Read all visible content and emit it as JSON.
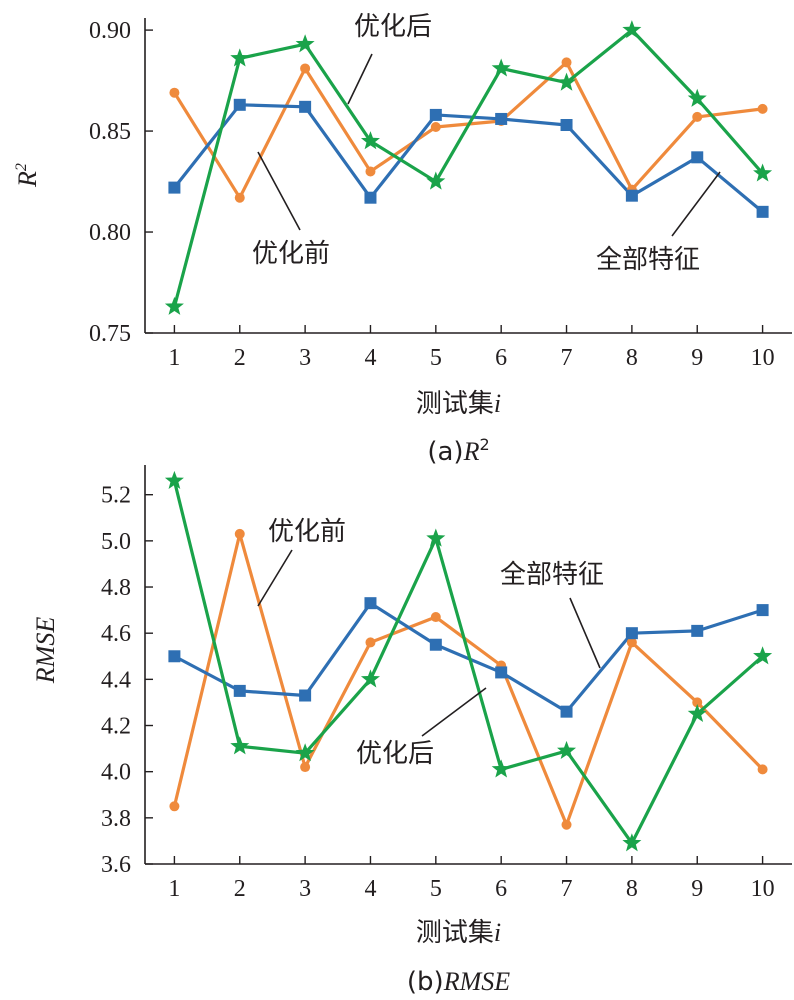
{
  "chart_data": [
    {
      "type": "line",
      "ylabel": "R",
      "ylabel_sup": "2",
      "xlabel": "测试集",
      "xlabel_var": "i",
      "caption_prefix": "(a)",
      "caption_main": "R",
      "caption_sup": "2",
      "x": [
        1,
        2,
        3,
        4,
        5,
        6,
        7,
        8,
        9,
        10
      ],
      "xlim": [
        0.55,
        10.45
      ],
      "ylim": [
        0.75,
        0.905
      ],
      "yticks": [
        "0.75",
        "0.80",
        "0.85",
        "0.90"
      ],
      "ytick_values": [
        0.75,
        0.8,
        0.85,
        0.9
      ],
      "xticks": [
        "1",
        "2",
        "3",
        "4",
        "5",
        "6",
        "7",
        "8",
        "9",
        "10"
      ],
      "series": [
        {
          "name": "优化前",
          "marker": "circle",
          "color": "#ef8a3c",
          "values": [
            0.869,
            0.817,
            0.881,
            0.83,
            0.852,
            0.855,
            0.884,
            0.821,
            0.857,
            0.861
          ]
        },
        {
          "name": "全部特征",
          "marker": "square",
          "color": "#2e6fb3",
          "values": [
            0.822,
            0.863,
            0.862,
            0.817,
            0.858,
            0.856,
            0.853,
            0.818,
            0.837,
            0.81
          ]
        },
        {
          "name": "优化后",
          "marker": "star",
          "color": "#1aa34a",
          "values": [
            0.763,
            0.886,
            0.893,
            0.845,
            0.825,
            0.881,
            0.874,
            0.9,
            0.866,
            0.829
          ]
        }
      ],
      "annotations": [
        "优化后",
        "优化前",
        "全部特征"
      ]
    },
    {
      "type": "line",
      "ylabel": "RMSE",
      "xlabel": "测试集",
      "xlabel_var": "i",
      "caption_prefix": "(b)",
      "caption_main": "RMSE",
      "x": [
        1,
        2,
        3,
        4,
        5,
        6,
        7,
        8,
        9,
        10
      ],
      "xlim": [
        0.55,
        10.45
      ],
      "ylim": [
        3.6,
        5.32
      ],
      "yticks": [
        "3.6",
        "3.8",
        "4.0",
        "4.2",
        "4.4",
        "4.6",
        "4.8",
        "5.0",
        "5.2"
      ],
      "ytick_values": [
        3.6,
        3.8,
        4.0,
        4.2,
        4.4,
        4.6,
        4.8,
        5.0,
        5.2
      ],
      "xticks": [
        "1",
        "2",
        "3",
        "4",
        "5",
        "6",
        "7",
        "8",
        "9",
        "10"
      ],
      "series": [
        {
          "name": "优化前",
          "marker": "circle",
          "color": "#ef8a3c",
          "values": [
            3.85,
            5.03,
            4.02,
            4.56,
            4.67,
            4.46,
            3.77,
            4.56,
            4.3,
            4.01
          ]
        },
        {
          "name": "全部特征",
          "marker": "square",
          "color": "#2e6fb3",
          "values": [
            4.5,
            4.35,
            4.33,
            4.73,
            4.55,
            4.43,
            4.26,
            4.6,
            4.61,
            4.7
          ]
        },
        {
          "name": "优化后",
          "marker": "star",
          "color": "#1aa34a",
          "values": [
            5.26,
            4.11,
            4.08,
            4.4,
            5.01,
            4.01,
            4.09,
            3.69,
            4.25,
            4.5
          ]
        }
      ],
      "annotations": [
        "优化前",
        "全部特征",
        "优化后"
      ]
    }
  ]
}
